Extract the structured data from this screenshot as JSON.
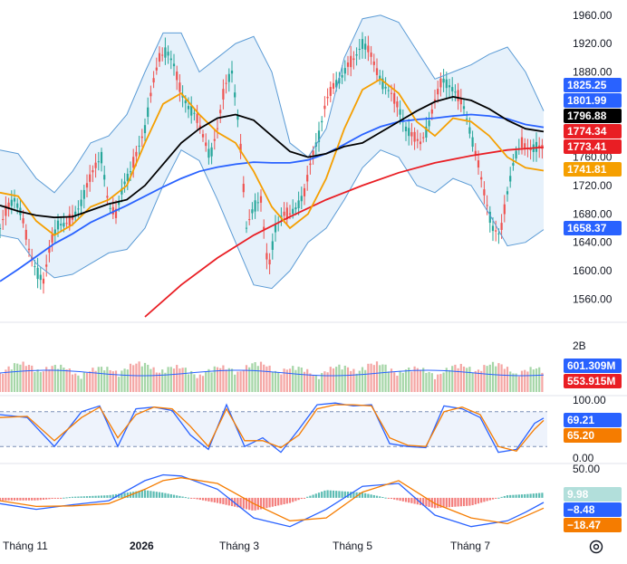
{
  "chart_data": [
    {
      "type": "candlestick",
      "panel": "price",
      "x_labels": [
        "Tháng 11",
        "2026",
        "Tháng 3",
        "Tháng 5",
        "Tháng 7"
      ],
      "y_ticks": [
        "1960.00",
        "1920.00",
        "1880.00",
        "1840.00",
        "1800.00",
        "1760.00",
        "1720.00",
        "1680.00",
        "1640.00",
        "1600.00",
        "1560.00"
      ],
      "ylim": [
        1535,
        1975
      ],
      "price_tags": [
        {
          "value": "1825.25",
          "color": "#2962ff"
        },
        {
          "value": "1801.99",
          "color": "#2962ff"
        },
        {
          "value": "1796.88",
          "color": "#000000"
        },
        {
          "value": "1774.34",
          "color": "#e91e24"
        },
        {
          "value": "1773.41",
          "color": "#e91e24"
        },
        {
          "value": "1741.81",
          "color": "#f59f00"
        },
        {
          "value": "1658.37",
          "color": "#2962ff"
        }
      ],
      "series": [
        {
          "kind": "close",
          "x": [
            0,
            8,
            16,
            24,
            32,
            40,
            48,
            56,
            64,
            72,
            80,
            88,
            96,
            104,
            112,
            120,
            128,
            136,
            144,
            152,
            160,
            168,
            176,
            184,
            192,
            200,
            208,
            216,
            224,
            232,
            240,
            248,
            256,
            264,
            272,
            280,
            288,
            296,
            304,
            312,
            320,
            328,
            336,
            344,
            352,
            360,
            368,
            376,
            384,
            392,
            400,
            408,
            416,
            424,
            432,
            440,
            448,
            456,
            464,
            472,
            480,
            488,
            496,
            504,
            512,
            520,
            528,
            536,
            544,
            552,
            560,
            568,
            576,
            584,
            592,
            600
          ],
          "values": [
            1660,
            1690,
            1700,
            1680,
            1630,
            1600,
            1585,
            1640,
            1665,
            1665,
            1675,
            1690,
            1720,
            1745,
            1760,
            1690,
            1680,
            1720,
            1740,
            1770,
            1800,
            1860,
            1900,
            1910,
            1890,
            1850,
            1830,
            1820,
            1790,
            1760,
            1800,
            1860,
            1880,
            1800,
            1660,
            1690,
            1700,
            1600,
            1660,
            1680,
            1680,
            1690,
            1710,
            1760,
            1790,
            1840,
            1860,
            1870,
            1890,
            1900,
            1920,
            1910,
            1880,
            1860,
            1850,
            1830,
            1800,
            1790,
            1780,
            1800,
            1840,
            1870,
            1860,
            1850,
            1830,
            1790,
            1750,
            1700,
            1660,
            1650,
            1710,
            1760,
            1780,
            1770,
            1775,
            1774
          ]
        },
        {
          "kind": "ma-short",
          "name": "",
          "color": "#f59f00",
          "x": [
            0,
            20,
            40,
            60,
            80,
            100,
            120,
            140,
            160,
            180,
            200,
            220,
            240,
            260,
            280,
            300,
            320,
            340,
            360,
            380,
            400,
            420,
            440,
            460,
            480,
            500,
            520,
            540,
            560,
            580,
            600
          ],
          "values": [
            1710,
            1705,
            1670,
            1650,
            1665,
            1690,
            1700,
            1720,
            1780,
            1835,
            1850,
            1820,
            1795,
            1780,
            1740,
            1690,
            1660,
            1680,
            1730,
            1800,
            1855,
            1870,
            1850,
            1810,
            1790,
            1815,
            1810,
            1790,
            1760,
            1745,
            1741
          ]
        },
        {
          "kind": "ma-mid",
          "name": "",
          "color": "#000000",
          "x": [
            0,
            20,
            40,
            60,
            80,
            100,
            120,
            140,
            160,
            180,
            200,
            220,
            240,
            260,
            280,
            300,
            320,
            340,
            360,
            380,
            400,
            420,
            440,
            460,
            480,
            500,
            520,
            540,
            560,
            580,
            600
          ],
          "values": [
            1692,
            1684,
            1678,
            1675,
            1676,
            1685,
            1694,
            1700,
            1720,
            1750,
            1780,
            1800,
            1815,
            1820,
            1812,
            1790,
            1768,
            1760,
            1765,
            1775,
            1780,
            1795,
            1810,
            1825,
            1838,
            1845,
            1840,
            1828,
            1812,
            1800,
            1796
          ]
        },
        {
          "kind": "ma-long",
          "name": "",
          "color": "#2962ff",
          "x": [
            0,
            20,
            40,
            60,
            80,
            100,
            120,
            140,
            160,
            180,
            200,
            220,
            240,
            260,
            280,
            300,
            320,
            340,
            360,
            380,
            400,
            420,
            440,
            460,
            480,
            500,
            520,
            540,
            560,
            580,
            600
          ],
          "values": [
            1585,
            1602,
            1620,
            1638,
            1652,
            1668,
            1680,
            1692,
            1705,
            1718,
            1730,
            1740,
            1746,
            1750,
            1753,
            1752,
            1752,
            1756,
            1765,
            1778,
            1792,
            1803,
            1810,
            1813,
            1815,
            1818,
            1820,
            1818,
            1814,
            1806,
            1802
          ]
        },
        {
          "kind": "ma-xlong",
          "name": "",
          "color": "#e91e24",
          "x": [
            160,
            200,
            240,
            280,
            320,
            360,
            400,
            440,
            480,
            520,
            560,
            600
          ],
          "values": [
            1535,
            1580,
            1618,
            1650,
            1676,
            1700,
            1720,
            1738,
            1752,
            1762,
            1770,
            1774
          ]
        },
        {
          "kind": "bb-upper",
          "name": "",
          "color": "#5b9bd5",
          "x": [
            0,
            20,
            40,
            60,
            80,
            100,
            120,
            140,
            160,
            180,
            200,
            220,
            240,
            260,
            280,
            300,
            320,
            340,
            360,
            380,
            400,
            420,
            440,
            460,
            480,
            500,
            520,
            540,
            560,
            580,
            600
          ],
          "values": [
            1770,
            1765,
            1730,
            1710,
            1740,
            1780,
            1790,
            1820,
            1880,
            1935,
            1935,
            1880,
            1900,
            1920,
            1930,
            1880,
            1780,
            1760,
            1800,
            1900,
            1955,
            1960,
            1950,
            1910,
            1870,
            1880,
            1890,
            1905,
            1915,
            1880,
            1825
          ]
        },
        {
          "kind": "bb-lower",
          "name": "",
          "color": "#5b9bd5",
          "x": [
            0,
            20,
            40,
            60,
            80,
            100,
            120,
            140,
            160,
            180,
            200,
            220,
            240,
            260,
            280,
            300,
            320,
            340,
            360,
            380,
            400,
            420,
            440,
            460,
            480,
            500,
            520,
            540,
            560,
            580,
            600
          ],
          "values": [
            1650,
            1645,
            1610,
            1590,
            1595,
            1610,
            1625,
            1630,
            1660,
            1720,
            1770,
            1755,
            1700,
            1640,
            1580,
            1575,
            1600,
            1640,
            1660,
            1700,
            1745,
            1770,
            1760,
            1720,
            1710,
            1730,
            1720,
            1680,
            1635,
            1640,
            1658
          ]
        }
      ]
    },
    {
      "type": "bar",
      "panel": "volume",
      "y_ticks": [
        "2B"
      ],
      "value_tags": [
        {
          "value": "601.309M",
          "color": "#2962ff"
        },
        {
          "value": "553.915M",
          "color": "#e91e24"
        }
      ],
      "up_color": "#4caf50",
      "down_color": "#ef5350"
    },
    {
      "type": "line",
      "panel": "stochastic",
      "y_ticks": [
        "100.00",
        "0.00"
      ],
      "ylim": [
        0,
        100
      ],
      "bands": [
        80,
        20
      ],
      "value_tags": [
        {
          "value": "69.21",
          "color": "#2962ff"
        },
        {
          "value": "65.20",
          "color": "#f57c00"
        }
      ],
      "series": [
        {
          "name": "",
          "color": "#2962ff",
          "x": [
            0,
            30,
            60,
            90,
            110,
            130,
            150,
            170,
            190,
            210,
            230,
            250,
            270,
            290,
            310,
            330,
            350,
            370,
            390,
            410,
            430,
            450,
            470,
            490,
            510,
            530,
            550,
            570,
            590,
            600
          ],
          "values": [
            75,
            70,
            20,
            80,
            90,
            20,
            85,
            88,
            82,
            40,
            15,
            92,
            20,
            35,
            10,
            50,
            92,
            95,
            90,
            92,
            25,
            20,
            18,
            90,
            85,
            70,
            10,
            15,
            60,
            69
          ]
        },
        {
          "name": "",
          "color": "#f57c00",
          "x": [
            0,
            30,
            60,
            90,
            110,
            130,
            150,
            170,
            190,
            210,
            230,
            250,
            270,
            290,
            310,
            330,
            350,
            370,
            390,
            410,
            430,
            450,
            470,
            490,
            510,
            530,
            550,
            570,
            590,
            600
          ],
          "values": [
            70,
            72,
            30,
            70,
            88,
            35,
            75,
            88,
            85,
            55,
            20,
            85,
            30,
            30,
            18,
            40,
            85,
            92,
            92,
            90,
            35,
            22,
            20,
            80,
            88,
            75,
            20,
            12,
            50,
            65
          ]
        }
      ]
    },
    {
      "type": "histogram+line",
      "panel": "macd",
      "y_ticks": [
        "50.00",
        "0.00"
      ],
      "ylim": [
        -60,
        55
      ],
      "value_tags": [
        {
          "value": "9.98",
          "color": "#b2dfdb",
          "dark_text": true
        },
        {
          "value": "−8.48",
          "color": "#2962ff"
        },
        {
          "value": "−18.47",
          "color": "#f57c00"
        }
      ],
      "series": [
        {
          "name": "",
          "color": "#2962ff",
          "x": [
            0,
            40,
            80,
            120,
            160,
            180,
            200,
            240,
            280,
            320,
            360,
            400,
            440,
            480,
            520,
            560,
            580,
            600
          ],
          "values": [
            -10,
            -20,
            -12,
            -5,
            30,
            40,
            38,
            15,
            -35,
            -50,
            -20,
            20,
            25,
            -30,
            -50,
            -40,
            -25,
            -8
          ]
        },
        {
          "name": "",
          "color": "#f57c00",
          "x": [
            0,
            40,
            80,
            120,
            160,
            180,
            200,
            240,
            280,
            320,
            360,
            400,
            440,
            480,
            520,
            560,
            580,
            600
          ],
          "values": [
            -5,
            -15,
            -14,
            -10,
            15,
            30,
            35,
            25,
            -10,
            -40,
            -35,
            10,
            30,
            -10,
            -35,
            -45,
            -32,
            -18
          ]
        }
      ]
    }
  ]
}
